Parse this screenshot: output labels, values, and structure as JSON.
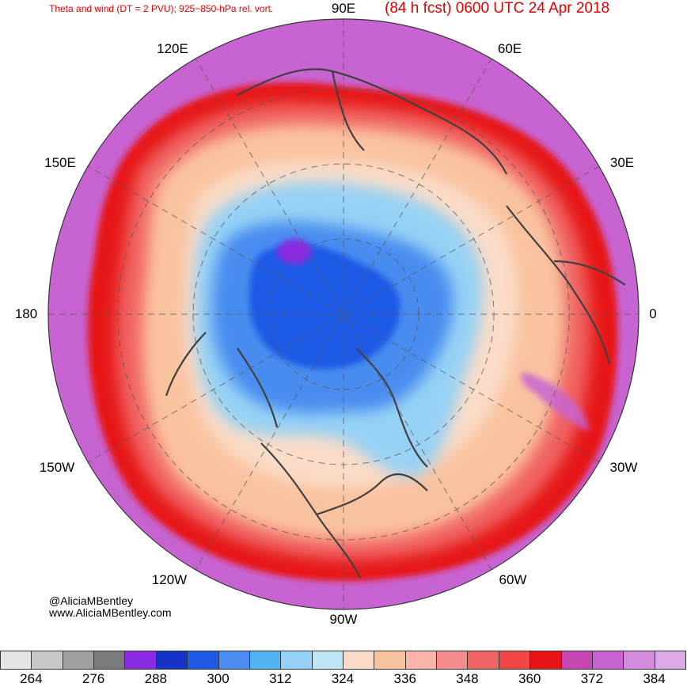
{
  "header": {
    "title_left": "Theta and wind (DT = 2 PVU); 925−850-hPa rel. vort.",
    "title_right": "(84 h fcst) 0600 UTC 24 Apr 2018"
  },
  "longitude_labels": {
    "lon_90e": "90E",
    "lon_60e": "60E",
    "lon_30e": "30E",
    "lon_0": "0",
    "lon_30w": "30W",
    "lon_60w": "60W",
    "lon_90w": "90W",
    "lon_120w": "120W",
    "lon_150w": "150W",
    "lon_180": "180",
    "lon_150e": "150E",
    "lon_120e": "120E"
  },
  "credits": {
    "handle": "@AliciaMBentley",
    "website": "www.AliciaMBentley.com"
  },
  "colorbar": {
    "colors": [
      "#e6e6e6",
      "#c8c8c8",
      "#a0a0a0",
      "#7a7a7a",
      "#8a2be2",
      "#1433c8",
      "#1e5ae6",
      "#4a8cf0",
      "#4fb4f0",
      "#96d2f5",
      "#bee6f5",
      "#fadcc8",
      "#fac3a0",
      "#fab4aa",
      "#f58c8c",
      "#f06464",
      "#f04646",
      "#e61414",
      "#c846b4",
      "#c864d2",
      "#d28cdc",
      "#dcaae6"
    ],
    "tick_labels": [
      "264",
      "276",
      "288",
      "300",
      "312",
      "324",
      "336",
      "348",
      "360",
      "372",
      "384"
    ]
  },
  "map": {
    "projection": "polar-stereographic-north",
    "colors": {
      "outer_purple": "#c864d2",
      "red_band": "#e61414",
      "salmon": "#fac3a0",
      "peach": "#fadcc8",
      "light_blue": "#96d2f5",
      "blue": "#4a8cf0",
      "dark_blue": "#1e5ae6",
      "violet": "#8a2be2",
      "coast": "#404040"
    }
  }
}
